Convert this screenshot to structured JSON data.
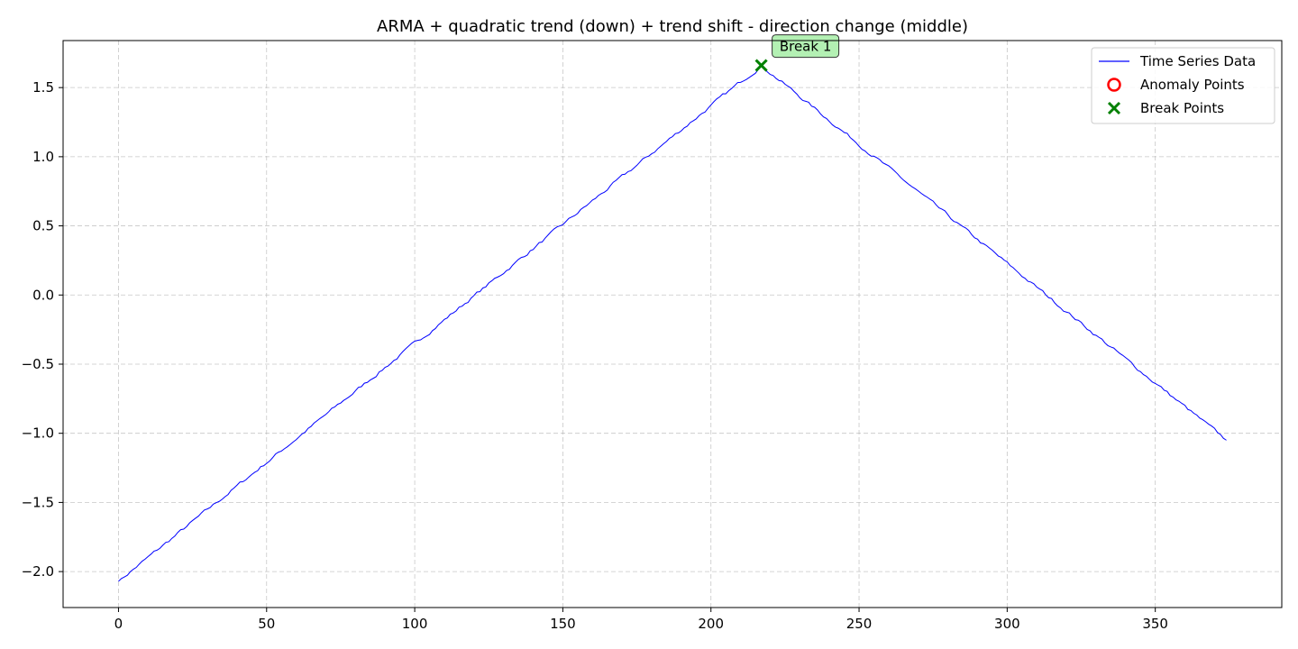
{
  "chart_data": {
    "type": "line",
    "title": "ARMA + quadratic trend (down) + trend shift - direction change (middle)",
    "xlabel": "",
    "ylabel": "",
    "xlim": [
      -18.7,
      392.7
    ],
    "ylim": [
      -2.26,
      1.84
    ],
    "x_ticks": [
      0,
      50,
      100,
      150,
      200,
      250,
      300,
      350
    ],
    "x_tick_labels": [
      "0",
      "50",
      "100",
      "150",
      "200",
      "250",
      "300",
      "350"
    ],
    "y_ticks": [
      -2.0,
      -1.5,
      -1.0,
      -0.5,
      0.0,
      0.5,
      1.0,
      1.5
    ],
    "y_tick_labels": [
      "−2.0",
      "−1.5",
      "−1.0",
      "−0.5",
      "0.0",
      "0.5",
      "1.0",
      "1.5"
    ],
    "grid": true,
    "legend_position": "top-right",
    "series": [
      {
        "name": "Time Series Data",
        "color": "#0000ff",
        "n_points": 375,
        "start": [
          0,
          -2.07
        ],
        "peak": [
          217,
          1.66
        ],
        "end": [
          374,
          -1.05
        ]
      }
    ],
    "anomalies": [],
    "breaks": [
      {
        "x": 217,
        "y": 1.66,
        "label": "Break 1"
      }
    ],
    "legend": [
      {
        "label": "Time Series Data",
        "marker": "line",
        "color": "#0000ff"
      },
      {
        "label": "Anomaly Points",
        "marker": "circle-open",
        "color": "#ff0000"
      },
      {
        "label": "Break Points",
        "marker": "x",
        "color": "#008000"
      }
    ],
    "annotation_fill": "#b3f0b3"
  }
}
